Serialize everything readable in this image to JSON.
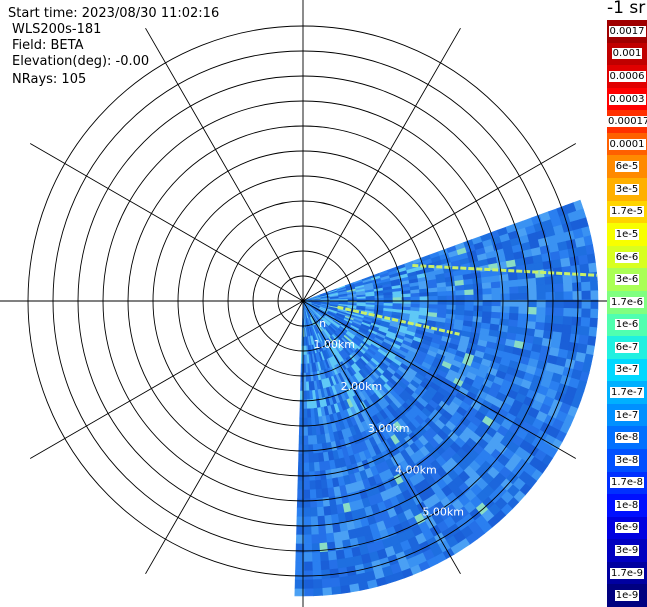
{
  "header": {
    "start_time": "Start time: 2023/08/30 11:02:16",
    "instrument": "WLS200s-181",
    "field": "Field: BETA",
    "elevation": "Elevation(deg): -0.00",
    "nrays": "NRays: 105"
  },
  "chart_data": {
    "type": "heatmap",
    "projection": "polar-ppi",
    "range_unit": "km",
    "range_max_km": 5.9,
    "range_rings_km": [
      0.5,
      1.0,
      1.5,
      2.0,
      2.5,
      3.0,
      3.5,
      4.0,
      4.5,
      5.0,
      5.5
    ],
    "range_labels": [
      "1.00km",
      "2.00km",
      "3.00km",
      "4.00km",
      "5.00km"
    ],
    "range_label_partial": "n",
    "spoke_angles_deg": [
      0,
      30,
      60,
      90,
      120,
      150,
      180,
      210,
      240,
      270,
      300,
      330
    ],
    "sector_azimuth_deg": [
      70,
      180
    ],
    "echo_lines": [
      {
        "az_start_deg": 72,
        "az_end_deg": 85,
        "range_start_km": 2.3,
        "range_end_km": 5.9
      },
      {
        "az_start_deg": 100,
        "az_end_deg": 102,
        "range_start_km": 0.7,
        "range_end_km": 3.2
      }
    ],
    "colorbar": {
      "title": "-1 sr",
      "labels": [
        "0.0017",
        "0.001",
        "0.0006",
        "0.0003",
        "0.00017",
        "0.0001",
        "6e-5",
        "3e-5",
        "1.7e-5",
        "1e-5",
        "6e-6",
        "3e-6",
        "1.7e-6",
        "1e-6",
        "6e-7",
        "3e-7",
        "1.7e-7",
        "1e-7",
        "6e-8",
        "3e-8",
        "1.7e-8",
        "1e-8",
        "6e-9",
        "3e-9",
        "1.7e-9",
        "1e-9"
      ],
      "colors": [
        "#a00000",
        "#c00000",
        "#e00000",
        "#ff0000",
        "#ff3000",
        "#ff6000",
        "#ff8a00",
        "#ffb000",
        "#ffd400",
        "#f8ff00",
        "#d8ff20",
        "#aaff55",
        "#80ff80",
        "#50ffb0",
        "#20f0e0",
        "#00d8ff",
        "#00b0ff",
        "#0090ff",
        "#0070ff",
        "#0050ff",
        "#0030ff",
        "#0010ff",
        "#0000e0",
        "#0000c0",
        "#0000a0",
        "#000080"
      ]
    }
  }
}
